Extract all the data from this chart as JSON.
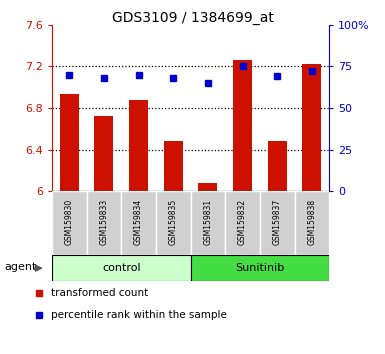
{
  "title": "GDS3109 / 1384699_at",
  "samples": [
    "GSM159830",
    "GSM159833",
    "GSM159834",
    "GSM159835",
    "GSM159831",
    "GSM159832",
    "GSM159837",
    "GSM159838"
  ],
  "red_values": [
    6.93,
    6.72,
    6.88,
    6.48,
    6.08,
    7.26,
    6.48,
    7.22
  ],
  "blue_values_pct": [
    70,
    68,
    70,
    68,
    65,
    75,
    69,
    72
  ],
  "ylim_left": [
    6.0,
    7.6
  ],
  "ylim_right": [
    0,
    100
  ],
  "yticks_left": [
    6.0,
    6.4,
    6.8,
    7.2,
    7.6
  ],
  "yticks_right": [
    0,
    25,
    50,
    75,
    100
  ],
  "ytick_labels_left": [
    "6",
    "6.4",
    "6.8",
    "7.2",
    "7.6"
  ],
  "ytick_labels_right": [
    "0",
    "25",
    "50",
    "75",
    "100%"
  ],
  "bar_color": "#cc1100",
  "dot_color": "#0000cc",
  "control_bg": "#ccffcc",
  "sunitinib_bg": "#44dd44",
  "sample_box_bg": "#d0d0d0",
  "plot_bg": "#ffffff",
  "legend_red": "transformed count",
  "legend_blue": "percentile rank within the sample",
  "agent_label": "agent",
  "control_samples": 4,
  "sunitinib_samples": 4
}
